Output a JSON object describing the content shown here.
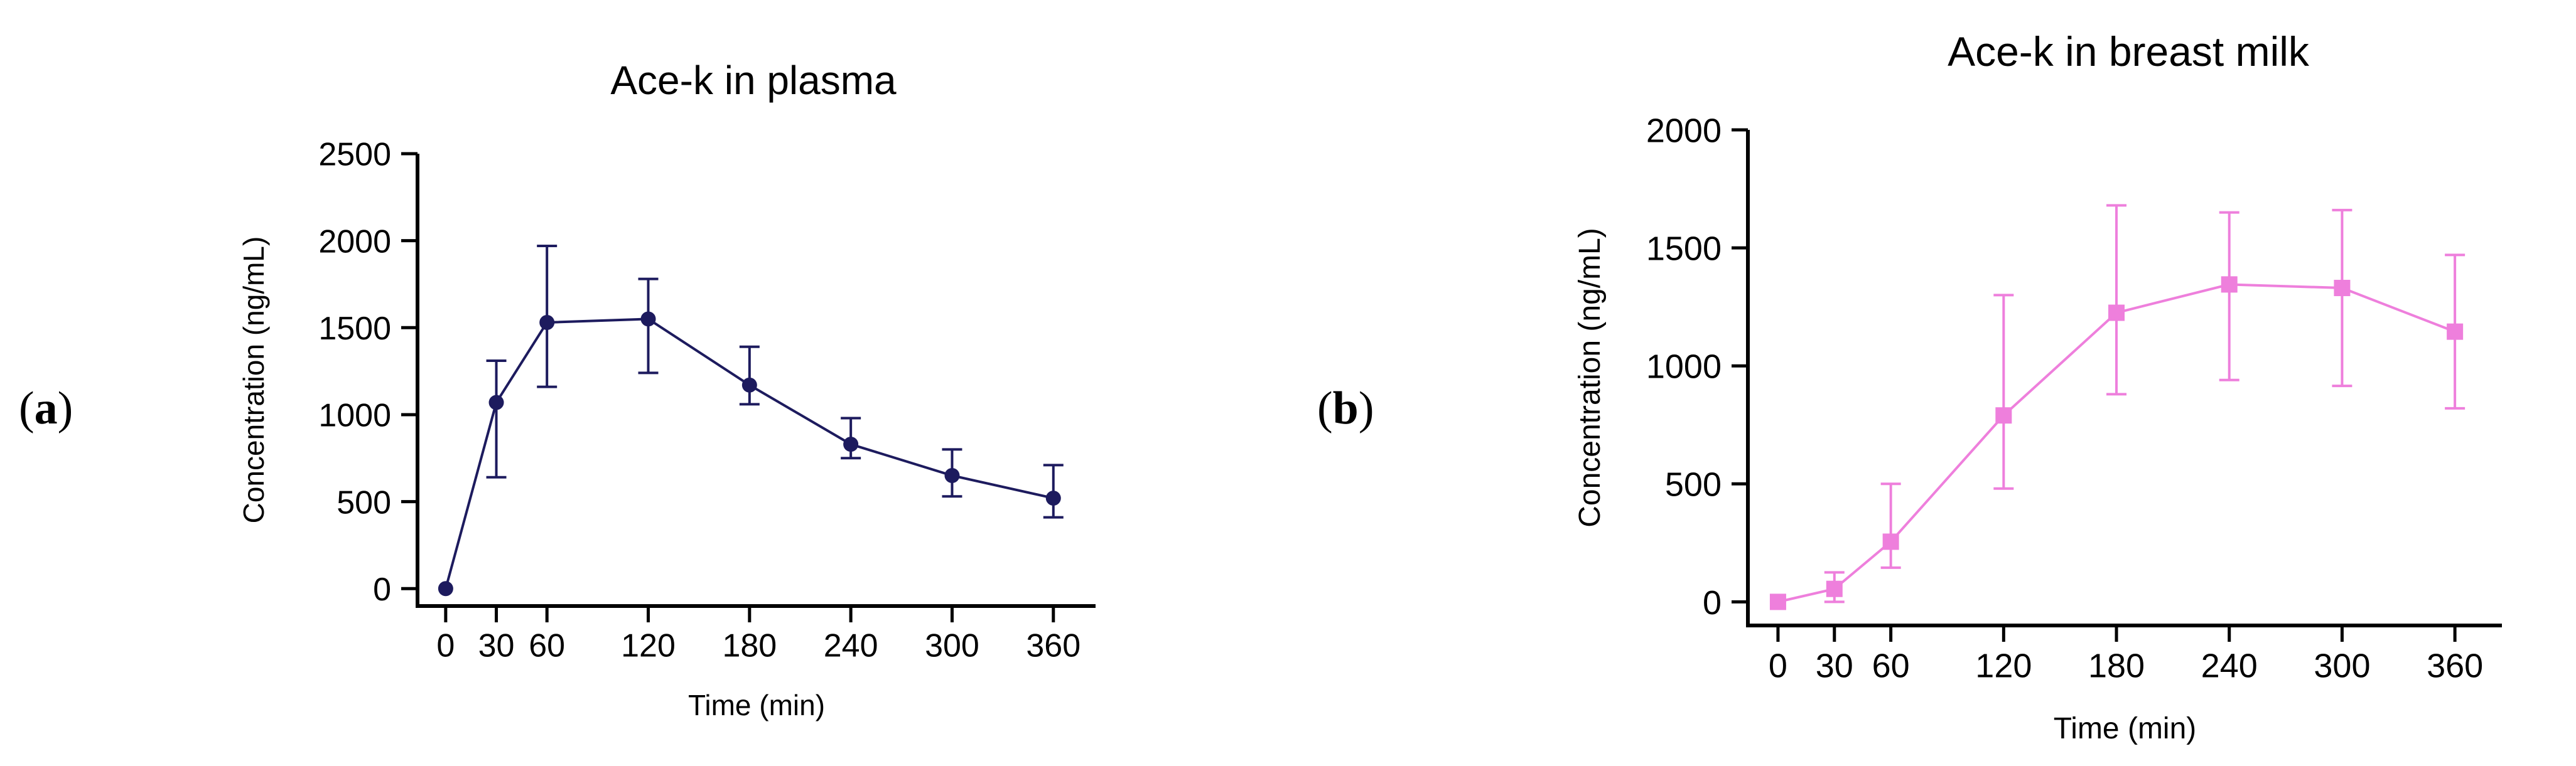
{
  "panels": [
    {
      "label": "(a)",
      "label_bold": "a"
    },
    {
      "label": "(b)",
      "label_bold": "b"
    }
  ],
  "chart_data": [
    {
      "type": "line",
      "title": "Ace-k in plasma",
      "xlabel": "Time (min)",
      "ylabel": "Concentration (ng/mL)",
      "x": [
        0,
        30,
        60,
        120,
        180,
        240,
        300,
        360
      ],
      "xticks": [
        0,
        30,
        60,
        120,
        180,
        240,
        300,
        360
      ],
      "yticks": [
        0,
        500,
        1000,
        1500,
        2000,
        2500
      ],
      "xlim": [
        -10,
        385
      ],
      "ylim": [
        -100,
        2500
      ],
      "series": [
        {
          "name": "Ace-k in plasma",
          "marker": "circle",
          "color": "#1d1b5e",
          "values": [
            0,
            1070,
            1530,
            1550,
            1170,
            830,
            650,
            520
          ],
          "error_low": [
            0,
            640,
            1160,
            1240,
            1060,
            750,
            530,
            410
          ],
          "error_high": [
            0,
            1310,
            1970,
            1780,
            1390,
            980,
            800,
            710
          ]
        }
      ],
      "grid": false,
      "legend": "none"
    },
    {
      "type": "line",
      "title": "Ace-k in breast milk",
      "xlabel": "Time (min)",
      "ylabel": "Concentration (ng/mL)",
      "x": [
        0,
        30,
        60,
        120,
        180,
        240,
        300,
        360
      ],
      "xticks": [
        0,
        30,
        60,
        120,
        180,
        240,
        300,
        360
      ],
      "yticks": [
        0,
        500,
        1000,
        1500,
        2000
      ],
      "xlim": [
        -10,
        385
      ],
      "ylim": [
        -100,
        2000
      ],
      "series": [
        {
          "name": "Ace-k in breast milk",
          "marker": "square",
          "color": "#ee7fdc",
          "values": [
            0,
            55,
            255,
            790,
            1225,
            1345,
            1330,
            1145
          ],
          "error_low": [
            0,
            0,
            145,
            480,
            880,
            940,
            915,
            820
          ],
          "error_high": [
            0,
            125,
            500,
            1300,
            1680,
            1650,
            1660,
            1470
          ]
        }
      ],
      "grid": false,
      "legend": "none"
    }
  ]
}
